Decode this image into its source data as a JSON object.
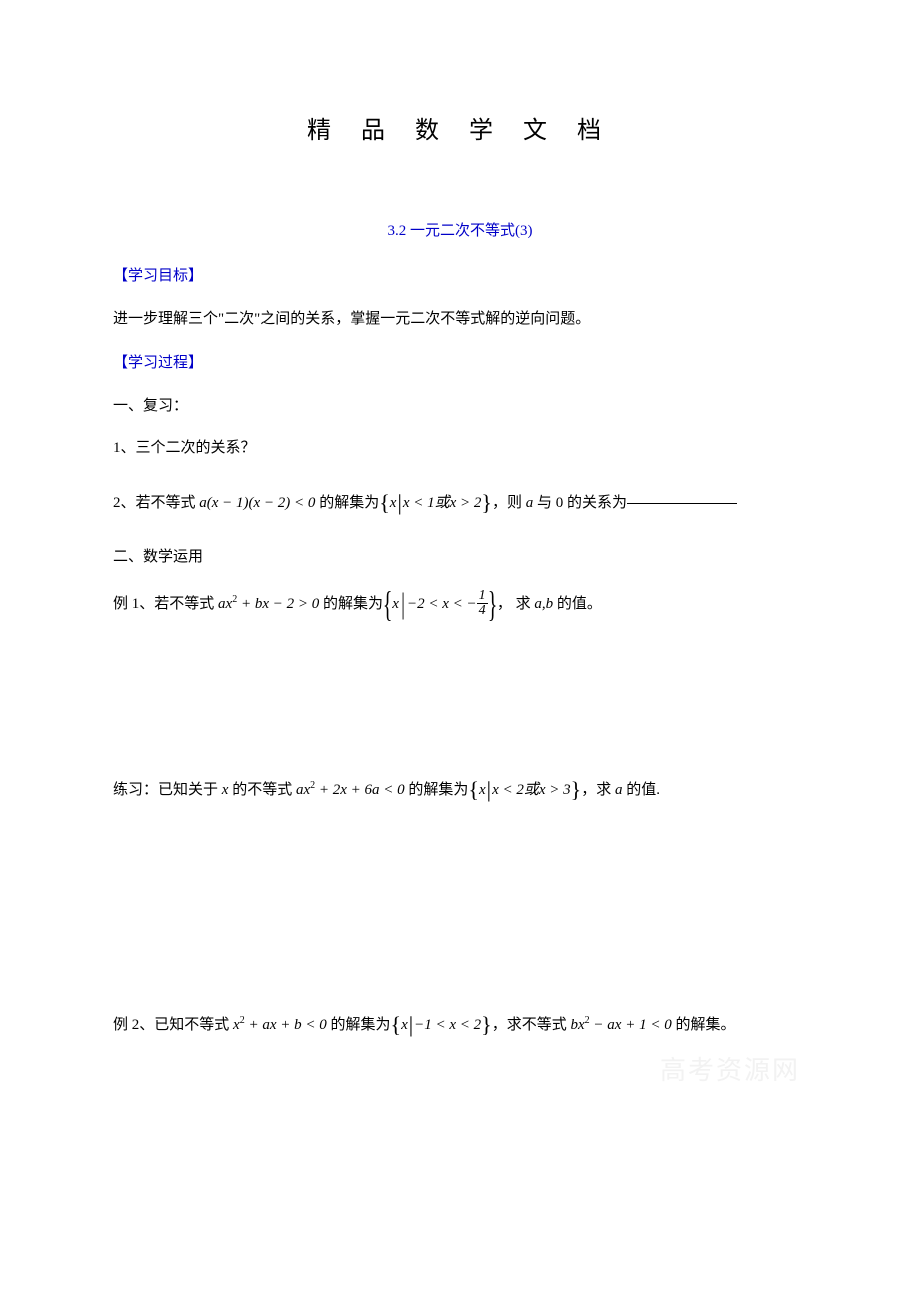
{
  "colors": {
    "text": "#000000",
    "accent": "#0000c8",
    "background": "#ffffff",
    "watermark": "#f2f2f2"
  },
  "fonts": {
    "body": "SimSun",
    "math": "Times New Roman",
    "title_size_pt": 18,
    "body_size_pt": 11
  },
  "doc_title": "精 品 数 学 文 档",
  "section_title": "3.2 一元二次不等式(3)",
  "goal_label": "【学习目标】",
  "goal_text": "进一步理解三个\"二次\"之间的关系，掌握一元二次不等式解的逆向问题。",
  "process_label": "【学习过程】",
  "part1_label": "一、复习：",
  "q1_label": "1、三个二次的关系？",
  "q2": {
    "prefix": "2、若不等式 ",
    "expr_a": "a",
    "expr_rest": "(x − 1)(x − 2) < 0",
    "mid": " 的解集为",
    "set_x": "x",
    "set_cond": "x < 1或x > 2",
    "after": "，则",
    "var": " a ",
    "tail": "与 0 的关系为",
    "blank": ""
  },
  "part2_label": "二、数学运用",
  "ex1": {
    "prefix": "例 1、若不等式 ",
    "expr": {
      "a": "a",
      "x2": "x",
      "sup2": "2",
      "plus1": " + ",
      "b": "b",
      "x": "x",
      "minus2gt0": " − 2 > 0"
    },
    "mid": " 的解集为",
    "set_x": "x",
    "cond_left": "−2 < x < −",
    "frac_num": "1",
    "frac_den": "4",
    "after": "， 求",
    "vars": " a,b ",
    "tail": "的值。"
  },
  "practice": {
    "prefix": "练习：已知关于 ",
    "x": "x ",
    "mid1": "的不等式 ",
    "expr": {
      "a": "a",
      "x2": "x",
      "sup2": "2",
      "plus2x": " + 2x + 6",
      "a2": "a",
      "lt0": " < 0"
    },
    "mid2": " 的解集为",
    "set_x": "x",
    "set_cond": "x < 2或x > 3",
    "after": "，求",
    "var": " a ",
    "tail": "的值."
  },
  "ex2": {
    "prefix": "例 2、已知不等式 ",
    "expr1": {
      "x2": "x",
      "sup2": "2",
      "plus": " + ",
      "a": "a",
      "x": "x",
      "plus2": " + ",
      "b": "b",
      "lt0": " < 0"
    },
    "mid1": " 的解集为",
    "set_x": "x",
    "set_cond": "−1 < x < 2",
    "mid2": "，求不等式",
    "expr2": {
      "b": " b",
      "x2": "x",
      "sup2": "2",
      "minus": " − ",
      "a": "a",
      "x": "x",
      "plus1lt0": " + 1 < 0 "
    },
    "tail": "的解集。"
  },
  "watermark": "高考资源网"
}
